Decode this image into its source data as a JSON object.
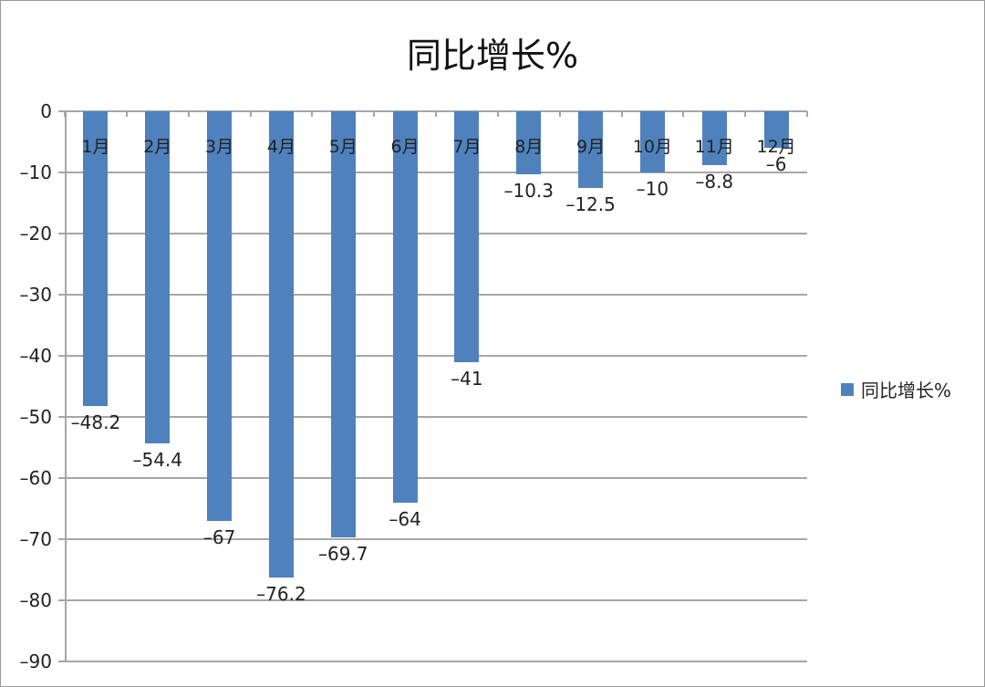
{
  "chart_data": {
    "type": "bar",
    "title": "同比增长%",
    "xlabel": "",
    "ylabel": "",
    "ylim": [
      -90,
      0
    ],
    "yticks": [
      0,
      -10,
      -20,
      -30,
      -40,
      -50,
      -60,
      -70,
      -80,
      -90
    ],
    "ytick_labels": [
      "0",
      "–10",
      "–20",
      "–30",
      "–40",
      "–50",
      "–60",
      "–70",
      "–80",
      "–90"
    ],
    "grid": true,
    "legend_position": "right",
    "categories": [
      "1月",
      "2月",
      "3月",
      "4月",
      "5月",
      "6月",
      "7月",
      "8月",
      "9月",
      "10月",
      "11月",
      "12月"
    ],
    "series": [
      {
        "name": "同比增长%",
        "color": "#4f81bd",
        "values": [
          -48.2,
          -54.4,
          -67,
          -76.2,
          -69.7,
          -64,
          -41,
          -10.3,
          -12.5,
          -10,
          -8.8,
          -6
        ],
        "labels": [
          "–48.2",
          "–54.4",
          "–67",
          "–76.2",
          "–69.7",
          "–64",
          "–41",
          "–10.3",
          "–12.5",
          "–10",
          "–8.8",
          "–6"
        ]
      }
    ]
  },
  "legend": {
    "label": "同比增长%"
  }
}
